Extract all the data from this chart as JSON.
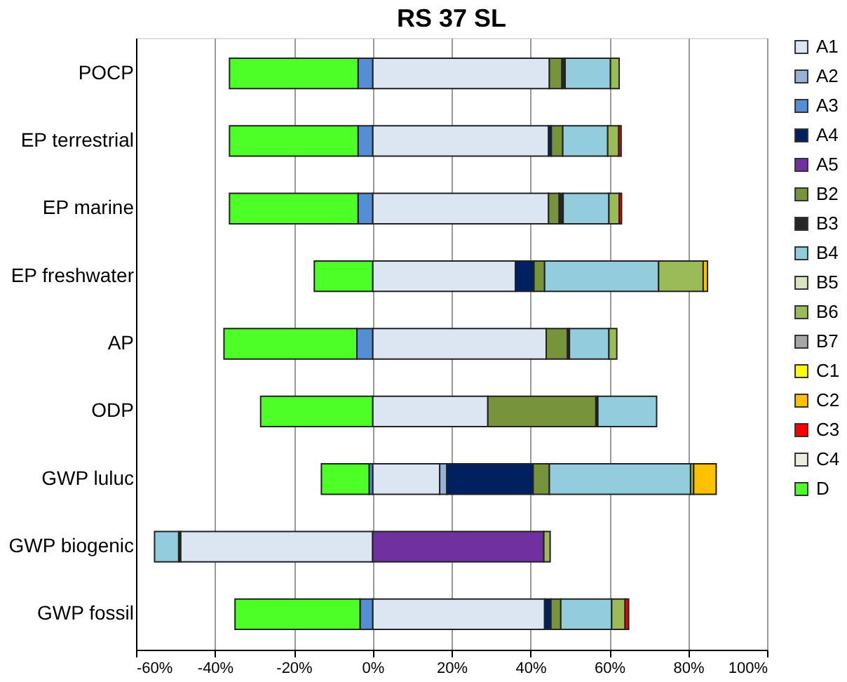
{
  "chart_data": {
    "type": "bar",
    "title": "RS 37 SL",
    "orientation": "horizontal",
    "stacked": true,
    "categories": [
      "POCP",
      "EP terrestrial",
      "EP marine",
      "EP freshwater",
      "AP",
      "ODP",
      "GWP luluc",
      "GWP biogenic",
      "GWP fossil"
    ],
    "xlim": [
      -60,
      100
    ],
    "xticks": [
      {
        "value": -60,
        "label": "-60%"
      },
      {
        "value": -40,
        "label": "-40%"
      },
      {
        "value": -20,
        "label": "-20%"
      },
      {
        "value": 0,
        "label": "0%"
      },
      {
        "value": 20,
        "label": "20%"
      },
      {
        "value": 40,
        "label": "40%"
      },
      {
        "value": 60,
        "label": "60%"
      },
      {
        "value": 80,
        "label": "80%"
      },
      {
        "value": 100,
        "label": "100%"
      }
    ],
    "grid": "x",
    "legend": "right",
    "series": [
      {
        "name": "A1",
        "color": "#dce6f2",
        "values": [
          44.8,
          44.6,
          44.6,
          36.2,
          44.0,
          29.2,
          17.0,
          -48.7,
          43.6
        ]
      },
      {
        "name": "A2",
        "color": "#95b3d7",
        "values": [
          null,
          null,
          null,
          null,
          null,
          null,
          1.8,
          null,
          null
        ]
      },
      {
        "name": "A3",
        "color": "#558ed5",
        "values": [
          -3.7,
          -3.7,
          -3.7,
          null,
          -4.0,
          null,
          -0.9,
          null,
          -3.2
        ]
      },
      {
        "name": "A4",
        "color": "#002060",
        "values": [
          null,
          0.7,
          null,
          4.7,
          null,
          null,
          21.9,
          null,
          1.6
        ]
      },
      {
        "name": "A5",
        "color": "#7030a0",
        "values": [
          null,
          null,
          null,
          null,
          null,
          null,
          null,
          43.4,
          null
        ]
      },
      {
        "name": "B2",
        "color": "#77933c",
        "values": [
          3.2,
          2.9,
          2.7,
          2.7,
          5.4,
          27.4,
          4.1,
          null,
          2.5
        ]
      },
      {
        "name": "B3",
        "color": "#262626",
        "values": [
          0.8,
          null,
          1.0,
          null,
          0.5,
          0.5,
          null,
          -0.5,
          null
        ]
      },
      {
        "name": "B4",
        "color": "#93cddd",
        "values": [
          11.5,
          11.4,
          11.6,
          28.9,
          10.0,
          14.9,
          35.8,
          -6.1,
          12.9
        ]
      },
      {
        "name": "B5",
        "color": "#d7e4bd",
        "values": [
          null,
          null,
          null,
          null,
          null,
          null,
          null,
          null,
          null
        ]
      },
      {
        "name": "B6",
        "color": "#9bbb59",
        "values": [
          2.2,
          2.8,
          2.6,
          11.3,
          2.0,
          null,
          0.8,
          1.6,
          3.4
        ]
      },
      {
        "name": "B7",
        "color": "#a6a6a6",
        "values": [
          null,
          null,
          null,
          null,
          null,
          null,
          null,
          null,
          null
        ]
      },
      {
        "name": "C1",
        "color": "#ffff00",
        "values": [
          null,
          null,
          null,
          null,
          null,
          null,
          null,
          null,
          null
        ]
      },
      {
        "name": "C2",
        "color": "#ffc000",
        "values": [
          null,
          null,
          null,
          1.1,
          null,
          null,
          5.7,
          null,
          null
        ]
      },
      {
        "name": "C3",
        "color": "#ff0000",
        "values": [
          null,
          0.6,
          0.6,
          null,
          null,
          null,
          null,
          null,
          0.9
        ]
      },
      {
        "name": "C4",
        "color": "#eeece1",
        "values": [
          null,
          null,
          null,
          null,
          null,
          null,
          null,
          null,
          null
        ]
      },
      {
        "name": "D",
        "color": "#4dff26",
        "values": [
          -32.6,
          -32.6,
          -32.6,
          -14.8,
          -33.7,
          -28.4,
          -12.1,
          null,
          -31.7
        ]
      }
    ]
  }
}
